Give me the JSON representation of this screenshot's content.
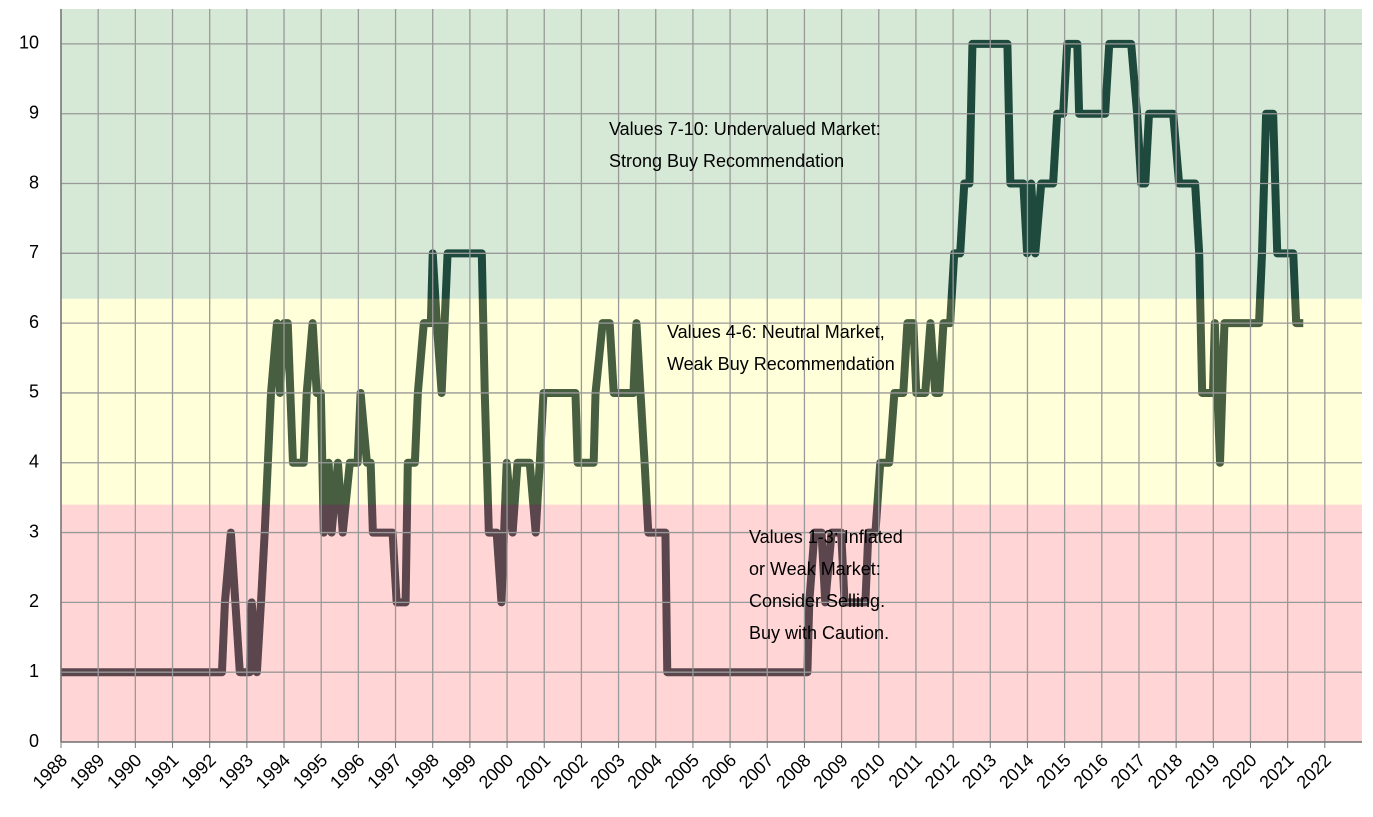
{
  "chart_data": {
    "type": "line",
    "xlim": [
      1988,
      2023
    ],
    "xticks": [
      1988,
      1989,
      1990,
      1991,
      1992,
      1993,
      1994,
      1995,
      1996,
      1997,
      1998,
      1999,
      2000,
      2001,
      2002,
      2003,
      2004,
      2005,
      2006,
      2007,
      2008,
      2009,
      2010,
      2011,
      2012,
      2013,
      2014,
      2015,
      2016,
      2017,
      2018,
      2019,
      2020,
      2021,
      2022
    ],
    "ylim": [
      0,
      10.5
    ],
    "yticks": [
      0,
      1,
      2,
      3,
      4,
      5,
      6,
      7,
      8,
      9,
      10
    ],
    "grid": true,
    "bands": [
      {
        "from": 0,
        "to": 3.4,
        "color": "#ff7f7f"
      },
      {
        "from": 3.4,
        "to": 6.35,
        "color": "#ffff66"
      },
      {
        "from": 6.35,
        "to": 10.5,
        "color": "#5aa85a"
      }
    ],
    "color": "#0a2a33",
    "x": [
      1988.0,
      1992.33,
      1992.41,
      1992.57,
      1992.81,
      1993.08,
      1993.13,
      1993.27,
      1993.38,
      1993.48,
      1993.65,
      1993.81,
      1993.89,
      1994.0,
      1994.1,
      1994.24,
      1994.53,
      1994.61,
      1994.77,
      1994.88,
      1994.99,
      1995.07,
      1995.2,
      1995.28,
      1995.45,
      1995.58,
      1995.77,
      1995.98,
      1996.06,
      1996.23,
      1996.33,
      1996.39,
      1996.92,
      1997.03,
      1997.27,
      1997.33,
      1997.52,
      1997.6,
      1997.76,
      1997.95,
      1998.0,
      1998.11,
      1998.24,
      1998.4,
      1999.32,
      1999.4,
      1999.51,
      1999.72,
      1999.85,
      1999.99,
      2000.15,
      2000.28,
      2000.61,
      2000.77,
      2000.88,
      2000.98,
      2001.84,
      2001.9,
      2002.33,
      2002.38,
      2002.57,
      2002.76,
      2002.87,
      2003.4,
      2003.48,
      2003.7,
      2003.8,
      2004.26,
      2004.31,
      2008.08,
      2008.13,
      2008.27,
      2008.46,
      2008.56,
      2008.73,
      2008.99,
      2009.08,
      2009.64,
      2009.72,
      2009.91,
      2010.04,
      2010.28,
      2010.42,
      2010.66,
      2010.77,
      2010.93,
      2011.01,
      2011.25,
      2011.39,
      2011.52,
      2011.63,
      2011.74,
      2011.92,
      2012.03,
      2012.19,
      2012.3,
      2012.44,
      2012.52,
      2013.46,
      2013.54,
      2013.89,
      2013.99,
      2014.1,
      2014.21,
      2014.37,
      2014.69,
      2014.8,
      2014.96,
      2015.07,
      2015.34,
      2015.39,
      2016.09,
      2016.2,
      2016.79,
      2016.95,
      2017.06,
      2017.17,
      2017.27,
      2017.92,
      2018.08,
      2018.51,
      2018.62,
      2018.7,
      2018.99,
      2019.04,
      2019.18,
      2019.3,
      2020.23,
      2020.31,
      2020.42,
      2020.61,
      2020.72,
      2021.15,
      2021.23,
      2021.42
    ],
    "values": [
      1,
      1,
      2,
      3,
      1,
      1,
      2,
      1,
      2,
      3,
      5,
      6,
      5,
      6,
      6,
      4,
      4,
      5,
      6,
      5,
      5,
      3,
      4,
      3,
      4,
      3,
      4,
      4,
      5,
      4,
      4,
      3,
      3,
      2,
      2,
      4,
      4,
      5,
      6,
      6,
      7,
      6,
      5,
      7,
      7,
      5,
      3,
      3,
      2,
      4,
      3,
      4,
      4,
      3,
      4,
      5,
      5,
      4,
      4,
      5,
      6,
      6,
      5,
      5,
      6,
      4,
      3,
      3,
      1,
      1,
      2,
      3,
      3,
      2,
      3,
      3,
      2,
      2,
      3,
      3,
      4,
      4,
      5,
      5,
      6,
      6,
      5,
      5,
      6,
      5,
      5,
      6,
      6,
      7,
      7,
      8,
      8,
      10,
      10,
      8,
      8,
      7,
      8,
      7,
      8,
      8,
      9,
      9,
      10,
      10,
      9,
      9,
      10,
      10,
      9,
      8,
      8,
      9,
      9,
      8,
      8,
      7,
      5,
      5,
      6,
      4,
      6,
      6,
      7,
      9,
      9,
      7,
      7,
      6,
      6
    ],
    "annotations": [
      {
        "lines": [
          "Values 7-10: Undervalued Market:",
          "Strong Buy Recommendation"
        ]
      },
      {
        "lines": [
          "Values 4-6: Neutral Market,",
          "Weak Buy Recommendation"
        ]
      },
      {
        "lines": [
          "Values 1-3: Inflated",
          "or Weak Market:",
          "Consider Selling.",
          "Buy with Caution."
        ]
      }
    ]
  }
}
